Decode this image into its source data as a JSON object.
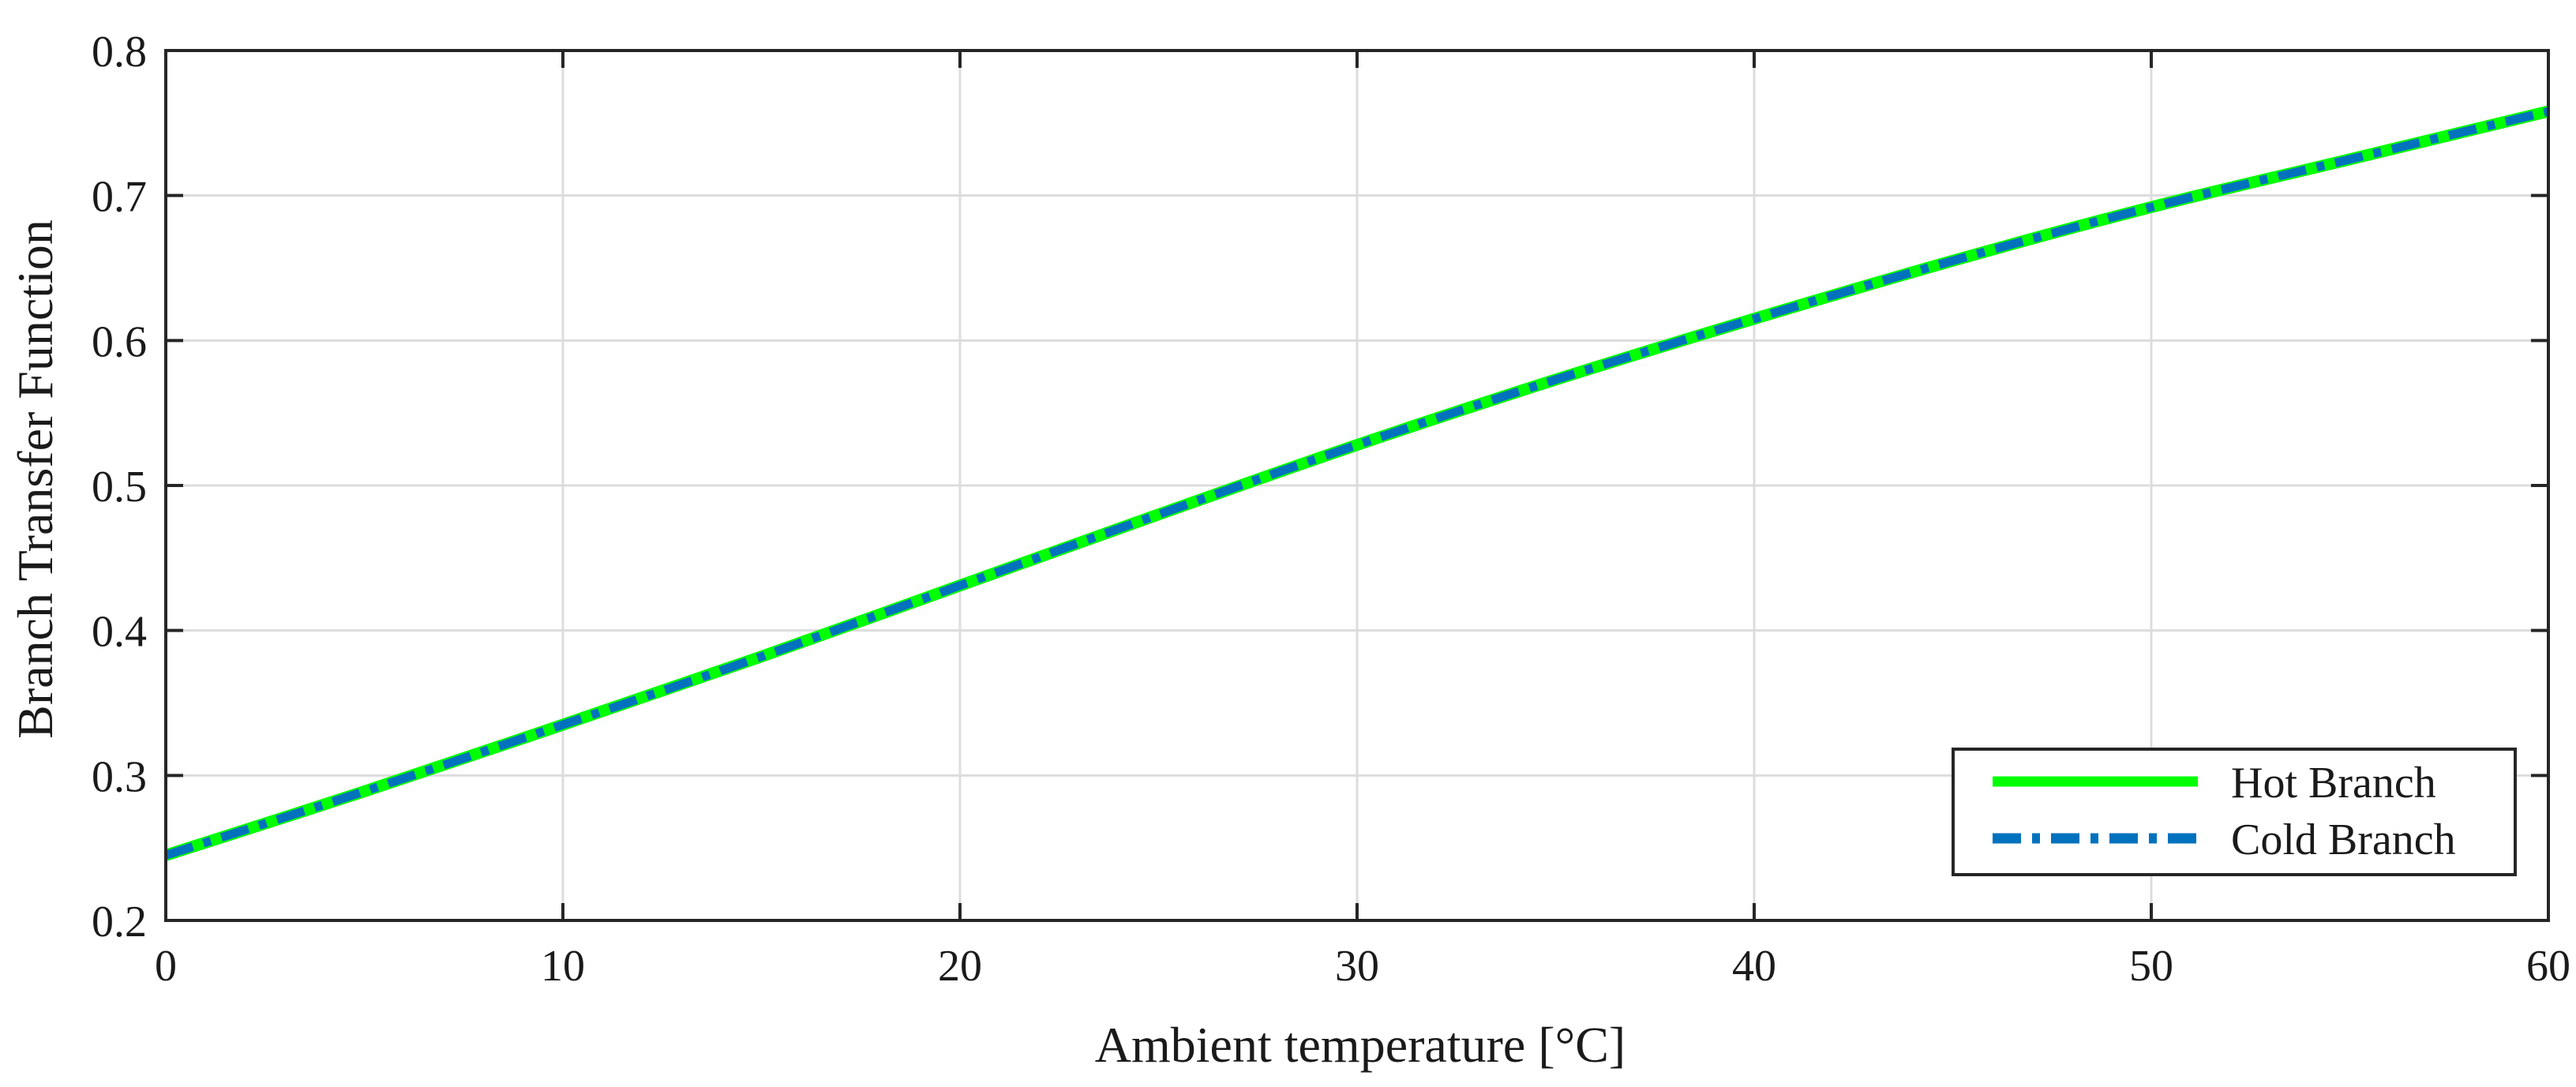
{
  "chart_data": {
    "type": "line",
    "title": "",
    "xlabel": "Ambient temperature [°C]",
    "ylabel": "Branch Transfer Function",
    "xlim": [
      0,
      60
    ],
    "ylim": [
      0.2,
      0.8
    ],
    "x_ticks": [
      0,
      10,
      20,
      30,
      40,
      50,
      60
    ],
    "y_ticks": [
      0.2,
      0.3,
      0.4,
      0.5,
      0.6,
      0.7,
      0.8
    ],
    "x_tick_labels": [
      "0",
      "10",
      "20",
      "30",
      "40",
      "50",
      "60"
    ],
    "y_tick_labels": [
      "0.2",
      "0.3",
      "0.4",
      "0.5",
      "0.6",
      "0.7",
      "0.8"
    ],
    "grid": true,
    "legend_position": "bottom-right",
    "x": [
      0,
      5,
      10,
      15,
      20,
      25,
      30,
      35,
      40,
      45,
      50,
      55,
      60
    ],
    "series": [
      {
        "name": "Hot Branch",
        "color": "#00ff00",
        "style": "solid",
        "values": [
          0.245,
          0.289,
          0.335,
          0.382,
          0.431,
          0.48,
          0.528,
          0.573,
          0.615,
          0.655,
          0.692,
          0.725,
          0.758
        ]
      },
      {
        "name": "Cold Branch",
        "color": "#0072bd",
        "style": "dash-dot",
        "values": [
          0.245,
          0.289,
          0.335,
          0.382,
          0.431,
          0.48,
          0.528,
          0.573,
          0.615,
          0.655,
          0.692,
          0.725,
          0.758
        ]
      }
    ]
  }
}
